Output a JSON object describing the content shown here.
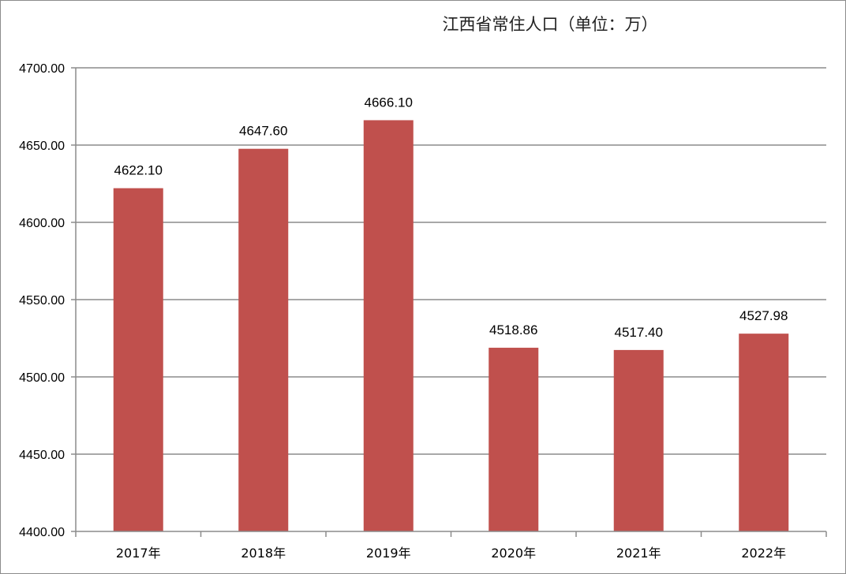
{
  "chart_data": {
    "type": "bar",
    "title": "江西省常住人口（单位：万）",
    "categories": [
      "2017年",
      "2018年",
      "2019年",
      "2020年",
      "2021年",
      "2022年"
    ],
    "values": [
      4622.1,
      4647.6,
      4666.1,
      4518.86,
      4517.4,
      4527.98
    ],
    "value_labels": [
      "4622.10",
      "4647.60",
      "4666.10",
      "4518.86",
      "4517.40",
      "4527.98"
    ],
    "xlabel": "",
    "ylabel": "",
    "ylim": [
      4400,
      4700
    ],
    "y_ticks": [
      4400,
      4450,
      4500,
      4550,
      4600,
      4650,
      4700
    ],
    "y_tick_labels": [
      "4400.00",
      "4450.00",
      "4500.00",
      "4550.00",
      "4600.00",
      "4650.00",
      "4700.00"
    ],
    "grid": true,
    "legend": "none",
    "bar_color": "#c0504d",
    "grid_color": "#8c8c8c"
  }
}
